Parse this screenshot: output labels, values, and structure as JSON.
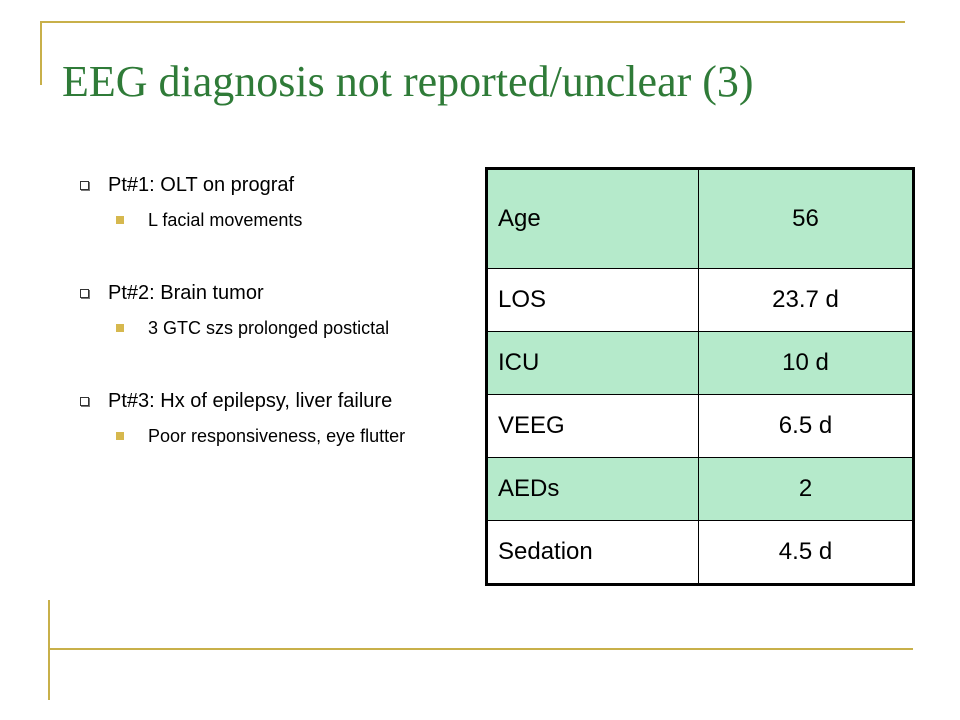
{
  "slide": {
    "title": "EEG diagnosis not reported/unclear (3)"
  },
  "bullets": [
    {
      "text": "Pt#1: OLT on prograf",
      "sub": [
        "L facial movements"
      ]
    },
    {
      "text": "Pt#2: Brain tumor",
      "sub": [
        "3 GTC szs prolonged postictal"
      ]
    },
    {
      "text": "Pt#3: Hx of epilepsy, liver failure",
      "sub": [
        "Poor responsiveness, eye flutter"
      ]
    }
  ],
  "table": {
    "rows": [
      {
        "label": "Age",
        "value": "56"
      },
      {
        "label": "LOS",
        "value": "23.7 d"
      },
      {
        "label": "ICU",
        "value": "10 d"
      },
      {
        "label": "VEEG",
        "value": "6.5 d"
      },
      {
        "label": "AEDs",
        "value": "2"
      },
      {
        "label": "Sedation",
        "value": "4.5 d"
      }
    ]
  },
  "colors": {
    "title": "#2f7b38",
    "accent_line": "#c8b04a",
    "table_shade": "#b5eacb",
    "sub_bullet": "#d6b84e"
  }
}
